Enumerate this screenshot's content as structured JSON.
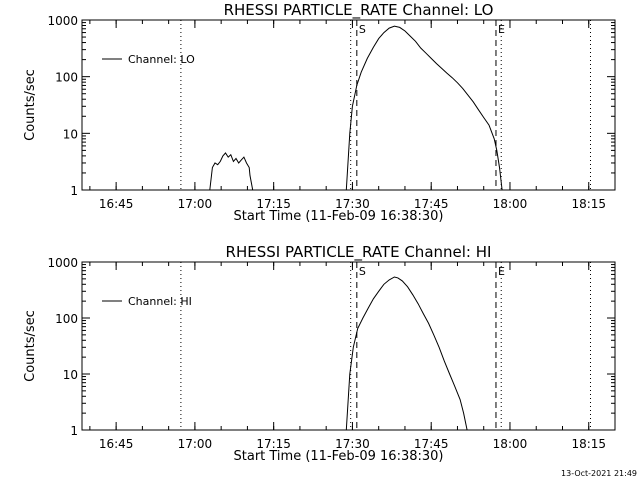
{
  "footer": {
    "timestamp": "13-Oct-2021 21:49"
  },
  "chart_data": [
    {
      "type": "line",
      "title": "RHESSI PARTICLE_RATE Channel: LO",
      "xlabel": "Start Time (11-Feb-09 16:38:30)",
      "ylabel": "Counts/sec",
      "yscale": "log",
      "xlim": [
        "16:38:30",
        "18:20:00"
      ],
      "ylim": [
        1,
        1000
      ],
      "xticks": [
        "16:45",
        "17:00",
        "17:15",
        "17:30",
        "17:45",
        "18:00",
        "18:15"
      ],
      "yticks": [
        "1",
        "10",
        "100",
        "1000"
      ],
      "legend": {
        "position": "top-left",
        "label": "Channel: LO"
      },
      "markers": [
        {
          "label": "S",
          "time": "17:30:50",
          "style": "dashed"
        },
        {
          "label": "E",
          "time": "17:57:20",
          "style": "dashed"
        }
      ],
      "vlines_dotted": [
        "16:57:20",
        "17:29:40",
        "17:58:20",
        "18:15:20"
      ],
      "series": [
        {
          "name": "Channel: LO",
          "segments": [
            {
              "x": [
                "17:02:50",
                "17:03:20",
                "17:03:50",
                "17:04:20",
                "17:04:50",
                "17:05:20",
                "17:05:50",
                "17:06:20",
                "17:06:50",
                "17:07:20",
                "17:07:50",
                "17:08:20",
                "17:08:50",
                "17:09:20",
                "17:09:50",
                "17:10:20",
                "17:10:30",
                "17:11:00"
              ],
              "y": [
                1.0,
                2.5,
                3.0,
                2.8,
                3.2,
                4.0,
                4.5,
                3.8,
                4.2,
                3.2,
                3.6,
                3.0,
                3.4,
                3.8,
                3.0,
                2.5,
                1.8,
                1.0
              ]
            },
            {
              "x": [
                "17:28:50",
                "17:29:30",
                "17:30:00",
                "17:30:50",
                "17:31:40",
                "17:32:50",
                "17:34:00",
                "17:35:00",
                "17:36:00",
                "17:37:00",
                "17:38:00",
                "17:39:00",
                "17:40:00",
                "17:41:00",
                "17:42:00",
                "17:43:00",
                "17:44:00",
                "17:45:00",
                "17:46:00",
                "17:47:00",
                "17:48:00",
                "17:49:00",
                "17:50:00",
                "17:51:00",
                "17:52:00",
                "17:53:00",
                "17:54:00",
                "17:55:00",
                "17:56:00",
                "17:57:00",
                "17:57:30",
                "17:58:00",
                "17:58:30"
              ],
              "y": [
                1.0,
                10,
                30,
                70,
                120,
                210,
                330,
                470,
                600,
                720,
                780,
                740,
                640,
                520,
                420,
                320,
                260,
                210,
                170,
                140,
                115,
                96,
                78,
                62,
                47,
                36,
                26,
                19,
                14,
                8,
                5,
                2.5,
                1.0
              ]
            }
          ]
        }
      ]
    },
    {
      "type": "line",
      "title": "RHESSI PARTICLE_RATE Channel: HI",
      "xlabel": "Start Time (11-Feb-09 16:38:30)",
      "ylabel": "Counts/sec",
      "yscale": "log",
      "xlim": [
        "16:38:30",
        "18:20:00"
      ],
      "ylim": [
        1,
        1000
      ],
      "xticks": [
        "16:45",
        "17:00",
        "17:15",
        "17:30",
        "17:45",
        "18:00",
        "18:15"
      ],
      "yticks": [
        "1",
        "10",
        "100",
        "1000"
      ],
      "legend": {
        "position": "top-left",
        "label": "Channel: HI"
      },
      "markers": [
        {
          "label": "S",
          "time": "17:30:50",
          "style": "dashed"
        },
        {
          "label": "E",
          "time": "17:57:20",
          "style": "dashed"
        }
      ],
      "vlines_dotted": [
        "16:57:20",
        "17:29:40",
        "17:58:20",
        "18:15:20"
      ],
      "series": [
        {
          "name": "Channel: HI",
          "segments": [
            {
              "x": [
                "17:28:50",
                "17:29:30",
                "17:30:10",
                "17:31:00",
                "17:32:00",
                "17:33:00",
                "17:34:00",
                "17:35:00",
                "17:36:00",
                "17:37:00",
                "17:38:00",
                "17:38:40",
                "17:39:30",
                "17:40:30",
                "17:41:30",
                "17:42:30",
                "17:43:30",
                "17:44:30",
                "17:45:30",
                "17:46:30",
                "17:47:30",
                "17:48:30",
                "17:49:30",
                "17:50:30",
                "17:51:10",
                "17:51:50"
              ],
              "y": [
                1.0,
                10,
                30,
                65,
                100,
                150,
                220,
                300,
                400,
                480,
                540,
                520,
                460,
                360,
                260,
                180,
                120,
                80,
                50,
                30,
                17,
                10,
                6,
                3.5,
                2.0,
                1.0
              ]
            }
          ]
        }
      ]
    }
  ]
}
